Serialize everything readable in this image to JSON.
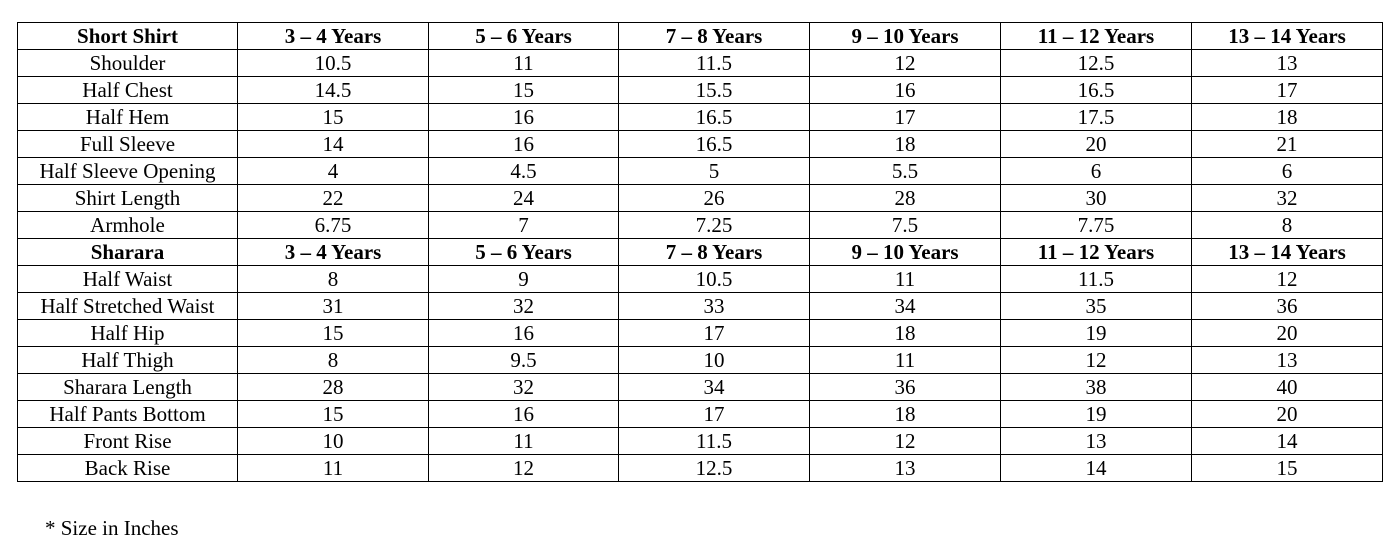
{
  "sections": [
    {
      "header": [
        "Short Shirt",
        "3 – 4 Years",
        "5 – 6 Years",
        "7 – 8 Years",
        "9 – 10 Years",
        "11 – 12 Years",
        "13 – 14 Years"
      ],
      "rows": [
        [
          "Shoulder",
          "10.5",
          "11",
          "11.5",
          "12",
          "12.5",
          "13"
        ],
        [
          "Half Chest",
          "14.5",
          "15",
          "15.5",
          "16",
          "16.5",
          "17"
        ],
        [
          "Half Hem",
          "15",
          "16",
          "16.5",
          "17",
          "17.5",
          "18"
        ],
        [
          "Full Sleeve",
          "14",
          "16",
          "16.5",
          "18",
          "20",
          "21"
        ],
        [
          "Half Sleeve Opening",
          "4",
          "4.5",
          "5",
          "5.5",
          "6",
          "6"
        ],
        [
          "Shirt Length",
          "22",
          "24",
          "26",
          "28",
          "30",
          "32"
        ],
        [
          "Armhole",
          "6.75",
          "7",
          "7.25",
          "7.5",
          "7.75",
          "8"
        ]
      ]
    },
    {
      "header": [
        "Sharara",
        "3 – 4 Years",
        "5 – 6 Years",
        "7 – 8 Years",
        "9 – 10 Years",
        "11 – 12 Years",
        "13 – 14 Years"
      ],
      "rows": [
        [
          "Half Waist",
          "8",
          "9",
          "10.5",
          "11",
          "11.5",
          "12"
        ],
        [
          "Half Stretched Waist",
          "31",
          "32",
          "33",
          "34",
          "35",
          "36"
        ],
        [
          "Half Hip",
          "15",
          "16",
          "17",
          "18",
          "19",
          "20"
        ],
        [
          "Half Thigh",
          "8",
          "9.5",
          "10",
          "11",
          "12",
          "13"
        ],
        [
          "Sharara Length",
          "28",
          "32",
          "34",
          "36",
          "38",
          "40"
        ],
        [
          "Half Pants Bottom",
          "15",
          "16",
          "17",
          "18",
          "19",
          "20"
        ],
        [
          "Front Rise",
          "10",
          "11",
          "11.5",
          "12",
          "13",
          "14"
        ],
        [
          "Back Rise",
          "11",
          "12",
          "12.5",
          "13",
          "14",
          "15"
        ]
      ]
    }
  ],
  "footnote": "* Size in Inches"
}
